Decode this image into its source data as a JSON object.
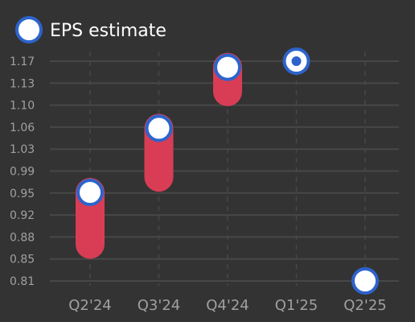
{
  "chart_data": {
    "type": "range",
    "legend": {
      "label": "EPS estimate",
      "placement": "top-left"
    },
    "categories": [
      "Q2'24",
      "Q3'24",
      "Q4'24",
      "Q1'25",
      "Q2'25"
    ],
    "y_ticks": [
      "0.81",
      "0.85",
      "0.88",
      "0.92",
      "0.95",
      "0.99",
      "1.03",
      "1.06",
      "1.10",
      "1.13",
      "1.17"
    ],
    "ylim": [
      0.81,
      1.17
    ],
    "estimate": [
      0.955,
      1.06,
      1.16,
      1.17,
      0.81
    ],
    "range_low": [
      0.87,
      0.98,
      1.12,
      null,
      null
    ],
    "range_high": [
      0.955,
      1.06,
      1.16,
      null,
      null
    ],
    "actual": [
      null,
      null,
      null,
      1.17,
      null
    ],
    "grid": {
      "horizontal": true,
      "vertical": "dashed"
    },
    "colors": {
      "background": "#333333",
      "grid": "#474747",
      "range_bar": "#d83d55",
      "marker_fill": "#ffffff",
      "marker_stroke": "#2d64cc",
      "tick_text": "#a0a0a0",
      "legend_text": "#ffffff"
    }
  }
}
